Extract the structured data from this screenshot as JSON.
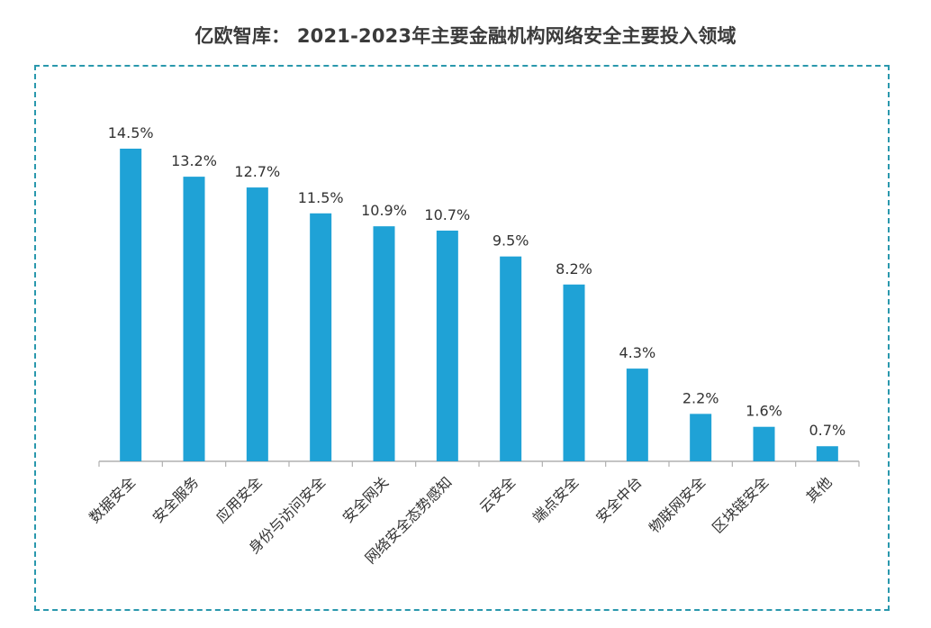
{
  "header": {
    "title": "亿欧智库： 2021-2023年主要金融机构网络安全主要投入领域"
  },
  "colors": {
    "bar": "#1fa2d6",
    "frame": "#2a98ad",
    "axis": "#b0b0b0",
    "text": "#333333"
  },
  "chart_data": {
    "type": "bar",
    "title": "亿欧智库： 2021-2023年主要金融机构网络安全主要投入领域",
    "xlabel": "",
    "ylabel": "",
    "categories": [
      "数据安全",
      "安全服务",
      "应用安全",
      "身份与访问安全",
      "安全网关",
      "网络安全态势感知",
      "云安全",
      "端点安全",
      "安全中台",
      "物联网安全",
      "区块链安全",
      "其他"
    ],
    "values": [
      14.5,
      13.2,
      12.7,
      11.5,
      10.9,
      10.7,
      9.5,
      8.2,
      4.3,
      2.2,
      1.6,
      0.7
    ],
    "value_labels": [
      "14.5%",
      "13.2%",
      "12.7%",
      "11.5%",
      "10.9%",
      "10.7%",
      "9.5%",
      "8.2%",
      "4.3%",
      "2.2%",
      "1.6%",
      "0.7%"
    ],
    "ylim": [
      0,
      14.5
    ],
    "grid": false,
    "legend": "none"
  }
}
